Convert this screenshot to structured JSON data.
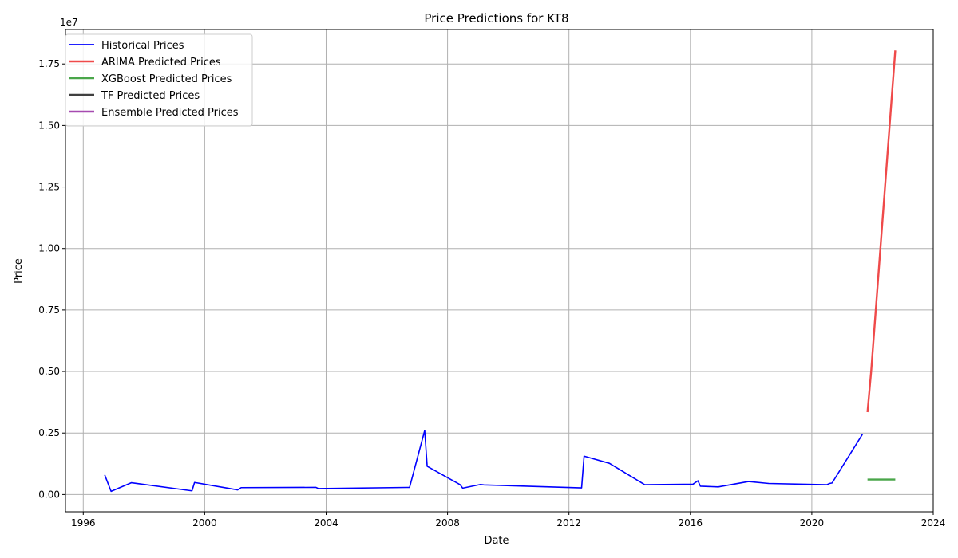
{
  "chart_data": {
    "type": "line",
    "title": "Price Predictions for KT8",
    "xlabel": "Date",
    "ylabel": "Price",
    "y_offset_label": "1e7",
    "xlim": [
      "1995-06-01",
      "2024-01-01"
    ],
    "ylim": [
      -700000,
      18900000
    ],
    "x_ticks": [
      "1996",
      "2000",
      "2004",
      "2008",
      "2012",
      "2016",
      "2020",
      "2024"
    ],
    "y_ticks": [
      {
        "value": 0,
        "label": "0.00"
      },
      {
        "value": 2500000,
        "label": "0.25"
      },
      {
        "value": 5000000,
        "label": "0.50"
      },
      {
        "value": 7500000,
        "label": "0.75"
      },
      {
        "value": 10000000,
        "label": "1.00"
      },
      {
        "value": 12500000,
        "label": "1.25"
      },
      {
        "value": 15000000,
        "label": "1.50"
      },
      {
        "value": 17500000,
        "label": "1.75"
      }
    ],
    "grid": true,
    "legend_position": "top-left",
    "series": [
      {
        "name": "Historical Prices",
        "color": "#0000ff",
        "points": [
          [
            "1996-09-15",
            800000
          ],
          [
            "1996-12-01",
            130000
          ],
          [
            "1997-08-01",
            480000
          ],
          [
            "1999-08-01",
            150000
          ],
          [
            "1999-09-01",
            490000
          ],
          [
            "2001-02-01",
            190000
          ],
          [
            "2001-03-15",
            280000
          ],
          [
            "2003-09-01",
            290000
          ],
          [
            "2003-10-01",
            240000
          ],
          [
            "2006-10-01",
            290000
          ],
          [
            "2007-04-01",
            2600000
          ],
          [
            "2007-05-01",
            1150000
          ],
          [
            "2008-06-01",
            400000
          ],
          [
            "2008-07-01",
            260000
          ],
          [
            "2009-02-01",
            410000
          ],
          [
            "2009-03-15",
            390000
          ],
          [
            "2012-06-01",
            270000
          ],
          [
            "2012-07-01",
            1560000
          ],
          [
            "2013-05-01",
            1270000
          ],
          [
            "2014-07-01",
            400000
          ],
          [
            "2016-02-01",
            420000
          ],
          [
            "2016-04-01",
            560000
          ],
          [
            "2016-05-01",
            340000
          ],
          [
            "2016-12-01",
            310000
          ],
          [
            "2017-12-01",
            530000
          ],
          [
            "2018-08-01",
            450000
          ],
          [
            "2020-07-01",
            400000
          ],
          [
            "2020-08-01",
            450000
          ],
          [
            "2020-09-01",
            470000
          ],
          [
            "2021-09-01",
            2450000
          ]
        ]
      },
      {
        "name": "ARIMA Predicted Prices",
        "color": "#ef4a4a",
        "points": [
          [
            "2021-11-01",
            3350000
          ],
          [
            "2021-12-15",
            5000000
          ],
          [
            "2022-10-01",
            18050000
          ]
        ]
      },
      {
        "name": "XGBoost Predicted Prices",
        "color": "#4aa64a",
        "points": [
          [
            "2021-11-01",
            610000
          ],
          [
            "2022-10-01",
            610000
          ]
        ]
      },
      {
        "name": "TF Predicted Prices",
        "color": "#404040",
        "points": []
      },
      {
        "name": "Ensemble Predicted Prices",
        "color": "#a64ab0",
        "points": []
      }
    ]
  }
}
